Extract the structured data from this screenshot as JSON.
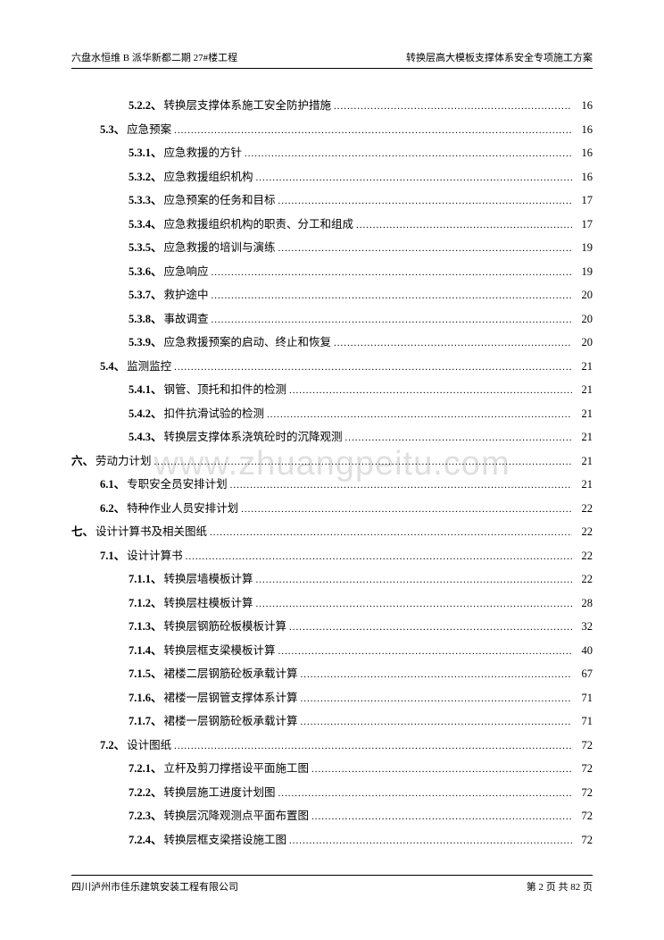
{
  "header": {
    "left": "六盘水恒维 B 派华新都二期 27#楼工程",
    "right": "转换层高大模板支撑体系安全专项施工方案"
  },
  "watermark": "www.zhuangpeitu.com",
  "footer": {
    "left": "四川泸州市佳乐建筑安装工程有限公司",
    "right": "第 2 页 共 82 页"
  },
  "toc": [
    {
      "level": 3,
      "num": "5.2.2、",
      "title": "转换层支撑体系施工安全防护措施",
      "page": "16"
    },
    {
      "level": 2,
      "num": "5.3、",
      "title": "应急预案",
      "page": "16"
    },
    {
      "level": 3,
      "num": "5.3.1、",
      "title": "应急救援的方针",
      "page": "16"
    },
    {
      "level": 3,
      "num": "5.3.2、",
      "title": "应急救援组织机构",
      "page": "16"
    },
    {
      "level": 3,
      "num": "5.3.3、",
      "title": "应急预案的任务和目标",
      "page": "17"
    },
    {
      "level": 3,
      "num": "5.3.4、",
      "title": "应急救援组织机构的职责、分工和组成",
      "page": "17"
    },
    {
      "level": 3,
      "num": "5.3.5、",
      "title": "应急救援的培训与演练",
      "page": "19"
    },
    {
      "level": 3,
      "num": "5.3.6、",
      "title": "应急响应",
      "page": "19"
    },
    {
      "level": 3,
      "num": "5.3.7、",
      "title": "救护途中",
      "page": "20"
    },
    {
      "level": 3,
      "num": "5.3.8、",
      "title": "事故调查",
      "page": "20"
    },
    {
      "level": 3,
      "num": "5.3.9、",
      "title": "应急救援预案的启动、终止和恢复",
      "page": "20"
    },
    {
      "level": 2,
      "num": "5.4、",
      "title": "监测监控",
      "page": "21"
    },
    {
      "level": 3,
      "num": "5.4.1、",
      "title": "钢管、顶托和扣件的检测",
      "page": "21"
    },
    {
      "level": 3,
      "num": "5.4.2、",
      "title": "扣件抗滑试验的检测",
      "page": "21"
    },
    {
      "level": 3,
      "num": "5.4.3、",
      "title": "转换层支撑体系浇筑砼时的沉降观测",
      "page": "21"
    },
    {
      "level": 1,
      "num": "六、",
      "title": "劳动力计划",
      "page": "21"
    },
    {
      "level": 2,
      "num": "6.1、",
      "title": "专职安全员安排计划",
      "page": "21"
    },
    {
      "level": 2,
      "num": "6.2、",
      "title": "特种作业人员安排计划",
      "page": "22"
    },
    {
      "level": 1,
      "num": "七、",
      "title": "设计计算书及相关图纸",
      "page": "22"
    },
    {
      "level": 2,
      "num": "7.1、",
      "title": "设计计算书",
      "page": "22"
    },
    {
      "level": 3,
      "num": "7.1.1、",
      "title": "转换层墙模板计算",
      "page": "22"
    },
    {
      "level": 3,
      "num": "7.1.2、",
      "title": "转换层柱模板计算",
      "page": "28"
    },
    {
      "level": 3,
      "num": "7.1.3、",
      "title": "转换层钢筋砼板模板计算",
      "page": "32"
    },
    {
      "level": 3,
      "num": "7.1.4、",
      "title": "转换层框支梁模板计算",
      "page": "40"
    },
    {
      "level": 3,
      "num": "7.1.5、",
      "title": "裙楼二层钢筋砼板承载计算",
      "page": "67"
    },
    {
      "level": 3,
      "num": "7.1.6、",
      "title": "裙楼一层钢管支撑体系计算",
      "page": "71"
    },
    {
      "level": 3,
      "num": "7.1.7、",
      "title": "裙楼一层钢筋砼板承载计算",
      "page": "71"
    },
    {
      "level": 2,
      "num": "7.2、",
      "title": "设计图纸",
      "page": "72"
    },
    {
      "level": 3,
      "num": "7.2.1、",
      "title": "立杆及剪刀撑搭设平面施工图",
      "page": "72"
    },
    {
      "level": 3,
      "num": "7.2.2、",
      "title": "转换层施工进度计划图",
      "page": "72"
    },
    {
      "level": 3,
      "num": "7.2.3、",
      "title": "转换层沉降观测点平面布置图",
      "page": "72"
    },
    {
      "level": 3,
      "num": "7.2.4、",
      "title": "转换层框支梁搭设施工图",
      "page": "72"
    }
  ]
}
